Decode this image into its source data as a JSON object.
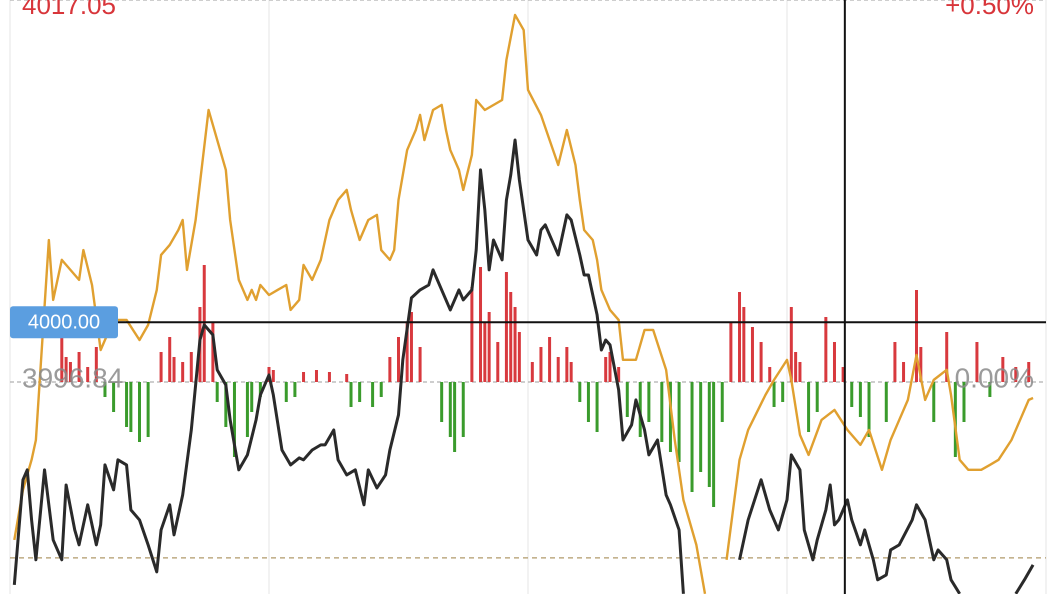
{
  "chart_data": {
    "type": "line",
    "xlim": [
      0,
      240
    ],
    "ylim": [
      3985.62,
      4017.05
    ],
    "yticks": [
      3996.84,
      4017.05
    ],
    "y2lim": [
      -0.2775,
      0.5
    ],
    "y2ticks": [
      {
        "value": 0,
        "label": "0.00%"
      },
      {
        "value": 0.5,
        "label": "+0.50%"
      }
    ],
    "tick_colors": {
      "up": "#d8353a",
      "flat": "#8a8a8a"
    },
    "reference_line": {
      "value": 3987.53,
      "color": "#b09a6a"
    },
    "crosshair": {
      "x": 193.4,
      "y": {
        "value": 4000,
        "label": "4000.00"
      },
      "color": "#111111",
      "label_color": "#5b9ee0"
    },
    "series": [
      {
        "color": "#e0a030",
        "x": [
          1,
          3,
          5,
          6,
          9,
          10,
          12,
          14,
          16,
          17,
          19,
          21,
          22,
          24,
          27,
          30,
          32,
          34,
          35,
          37,
          39,
          40,
          41,
          43,
          46,
          47,
          50,
          51,
          53,
          55,
          56,
          57,
          58,
          60,
          62,
          64,
          65,
          67,
          68,
          70,
          72,
          74,
          76,
          78,
          79,
          81,
          83,
          85,
          86,
          88,
          89,
          90,
          92,
          94,
          95,
          96,
          98,
          100,
          101,
          102,
          104,
          105,
          107,
          108,
          110,
          114,
          115,
          117,
          119,
          120,
          123,
          125,
          127,
          129,
          131,
          132,
          133,
          135,
          136,
          137,
          139,
          141,
          142,
          145,
          147,
          149,
          152,
          154,
          156,
          159,
          161,
          163,
          166,
          169,
          171,
          175,
          177,
          180,
          181,
          183,
          185,
          188,
          191,
          194,
          197,
          199,
          202,
          204,
          206,
          208,
          210,
          212,
          214,
          217,
          218,
          220,
          222,
          225,
          227,
          229,
          232,
          234,
          236,
          237
        ],
        "values": [
          3988.48,
          3991.13,
          3992.72,
          3993.77,
          4004.35,
          4001.18,
          4003.3,
          4002.77,
          4002.24,
          4003.82,
          4001.97,
          3998.53,
          3999.06,
          4000.12,
          4000.12,
          3999.06,
          3999.86,
          4001.71,
          4003.56,
          4004.09,
          4004.88,
          4005.41,
          4002.77,
          4005.41,
          4011.23,
          4010.44,
          4008.06,
          4005.41,
          4002.24,
          4001.18,
          4001.71,
          4001.18,
          4001.97,
          4001.44,
          4001.71,
          4001.97,
          4000.65,
          4001.18,
          4003.03,
          4002.24,
          4003.3,
          4005.41,
          4006.47,
          4007.0,
          4005.94,
          4004.35,
          4005.41,
          4005.68,
          4003.82,
          4003.3,
          4003.82,
          4006.47,
          4009.11,
          4010.17,
          4010.97,
          4009.64,
          4011.23,
          4011.5,
          4010.17,
          4009.11,
          4008.06,
          4007.0,
          4008.85,
          4011.76,
          4011.23,
          4011.76,
          4013.88,
          4016.26,
          4015.46,
          4012.29,
          4010.97,
          4009.64,
          4008.32,
          4010.17,
          4008.32,
          4006.47,
          4004.88,
          4004.35,
          4003.3,
          4001.71,
          4000.65,
          4000.12,
          3998.01,
          3998.01,
          3999.59,
          3999.59,
          3997.48,
          3993.77,
          3990.6,
          3988.22,
          3985.63,
          null,
          3987.43,
          3992.72,
          3994.3,
          3996.15,
          3996.95,
          3998.01,
          3996.95,
          3994.04,
          3992.98,
          3994.83,
          3995.36,
          3994.3,
          3993.51,
          3994.3,
          3992.19,
          3993.77,
          3994.83,
          3995.89,
          3998.27,
          3995.89,
          3996.95,
          3997.48,
          3996.15,
          3992.72,
          3992.19,
          3992.19,
          3992.45,
          3992.72,
          3993.77,
          3994.83,
          3995.89,
          3995.99
        ]
      },
      {
        "color": "#2a2a2a",
        "x": [
          1,
          3,
          4,
          5,
          6,
          8,
          10,
          12,
          13,
          15,
          16,
          18,
          20,
          21,
          22,
          24,
          25,
          27,
          28,
          30,
          32,
          34,
          35,
          37,
          38,
          40,
          42,
          44,
          45,
          47,
          48,
          50,
          51,
          53,
          55,
          57,
          58,
          60,
          61,
          63,
          65,
          67,
          68,
          70,
          72,
          73,
          75,
          76,
          78,
          80,
          82,
          83,
          85,
          87,
          88,
          90,
          91,
          93,
          95,
          97,
          98,
          100,
          101,
          102,
          104,
          105,
          107,
          108,
          109,
          110,
          111,
          112,
          114,
          115,
          116,
          117,
          118,
          119,
          120,
          122,
          123,
          124,
          126,
          127,
          129,
          130,
          132,
          133,
          134,
          136,
          137,
          138,
          139,
          141,
          142,
          144,
          145,
          147,
          148,
          150,
          152,
          153,
          155,
          156,
          160,
          169,
          171,
          174,
          176,
          178,
          180,
          181,
          183,
          184,
          186,
          187,
          189,
          190,
          191,
          192,
          194,
          195,
          197,
          198,
          200,
          201,
          203,
          204,
          206,
          209,
          210,
          212,
          214,
          215,
          217,
          218,
          220,
          222,
          233,
          235,
          237
        ],
        "values": [
          3986.1,
          3991.66,
          3992.19,
          3989.54,
          3987.43,
          3992.19,
          3988.48,
          3987.43,
          3991.39,
          3989.01,
          3988.22,
          3990.34,
          3988.22,
          3989.28,
          3992.45,
          3991.13,
          3992.72,
          3992.45,
          3990.07,
          3989.54,
          3988.22,
          3986.79,
          3989.01,
          3990.34,
          3988.75,
          3990.86,
          3994.3,
          3999.06,
          3999.86,
          3999.33,
          3997.48,
          3996.68,
          3994.83,
          3992.19,
          3992.98,
          3994.83,
          3996.15,
          3997.21,
          3996.15,
          3993.24,
          3992.45,
          3992.82,
          3992.72,
          3993.24,
          3993.51,
          3993.51,
          3994.3,
          3992.72,
          3991.92,
          3992.19,
          3990.34,
          3992.19,
          3991.23,
          3991.92,
          3993.24,
          3995.1,
          3998.01,
          4001.29,
          4001.71,
          4001.97,
          4002.77,
          4001.71,
          4001.18,
          4000.65,
          4001.71,
          4001.18,
          4001.71,
          4003.82,
          4008.06,
          4005.94,
          4002.77,
          4004.35,
          4003.3,
          4006.47,
          4007.79,
          4009.64,
          4007.53,
          4005.94,
          4004.35,
          4003.56,
          4004.88,
          4005.15,
          4004.09,
          4003.56,
          4005.68,
          4005.41,
          4003.56,
          4002.5,
          4002.5,
          4000.39,
          3998.53,
          3999.06,
          3998.8,
          3996.42,
          3993.77,
          3994.57,
          3995.89,
          3994.3,
          3992.98,
          3993.77,
          3990.86,
          3990.34,
          3989.01,
          3985.63,
          null,
          3987.43,
          3989.54,
          3991.66,
          3990.07,
          3989.01,
          3990.6,
          3992.98,
          3992.19,
          3989.01,
          3987.43,
          3988.48,
          3990.07,
          3991.39,
          3989.28,
          3989.54,
          3990.6,
          3989.54,
          3988.22,
          3989.01,
          3987.43,
          3986.37,
          3986.63,
          3987.95,
          3988.22,
          3989.54,
          3990.34,
          3989.54,
          3987.43,
          3987.95,
          3987.43,
          3986.37,
          3985.63,
          null,
          3985.63,
          3986.37,
          3987.16
        ]
      }
    ],
    "bars": {
      "ylim": [
        -212,
        382
      ],
      "up_color": "#d8393e",
      "down_color": "#3a9b2c",
      "x": [
        12,
        13,
        14,
        16,
        18,
        20,
        22,
        24,
        27,
        28,
        30,
        32,
        35,
        37,
        38,
        40,
        42,
        44,
        45,
        47,
        48,
        50,
        52,
        55,
        56,
        58,
        60,
        61,
        64,
        66,
        68,
        71,
        74,
        78,
        79,
        81,
        84,
        86,
        88,
        90,
        92,
        93,
        95,
        100,
        102,
        103,
        105,
        107,
        109,
        110,
        111,
        113,
        115,
        116,
        117,
        118,
        121,
        123,
        125,
        127,
        129,
        130,
        132,
        134,
        136,
        138,
        139,
        141,
        143,
        146,
        148,
        151,
        153,
        155,
        158,
        160,
        162,
        163,
        165,
        167,
        169,
        170,
        172,
        174,
        176,
        177,
        179,
        181,
        182,
        183,
        185,
        187,
        189,
        191,
        193,
        195,
        197,
        199,
        203,
        205,
        207,
        210,
        211,
        214,
        217,
        219,
        221,
        224,
        227,
        230,
        233,
        236
      ],
      "values": [
        45,
        25,
        20,
        30,
        15,
        35,
        -15,
        -30,
        -45,
        -50,
        -60,
        -55,
        30,
        45,
        25,
        20,
        30,
        75,
        117,
        60,
        -20,
        -45,
        -75,
        -55,
        -30,
        -15,
        15,
        12,
        -20,
        -15,
        10,
        12,
        10,
        8,
        -25,
        -20,
        -25,
        -15,
        25,
        45,
        60,
        70,
        35,
        -40,
        -55,
        -70,
        -55,
        95,
        115,
        60,
        70,
        40,
        110,
        90,
        75,
        50,
        20,
        35,
        45,
        25,
        35,
        20,
        -20,
        -40,
        -50,
        25,
        30,
        15,
        -35,
        -55,
        -40,
        -60,
        -70,
        -80,
        -110,
        -90,
        -105,
        -125,
        -40,
        60,
        90,
        75,
        55,
        40,
        15,
        -25,
        -20,
        75,
        30,
        20,
        -50,
        -30,
        65,
        40,
        15,
        -25,
        -35,
        -55,
        -40,
        40,
        20,
        92,
        35,
        -40,
        50,
        -75,
        -40,
        40,
        -15,
        25,
        15,
        20
      ]
    }
  }
}
